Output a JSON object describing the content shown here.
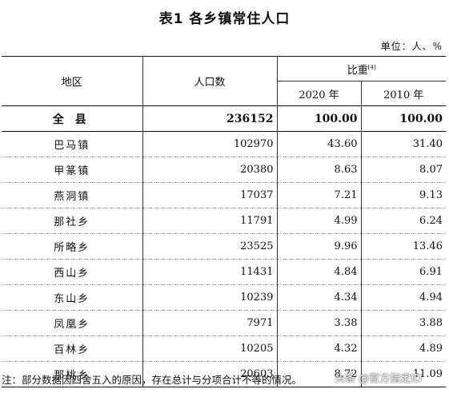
{
  "title": "表1  各乡镇常住人口",
  "unit": "单位：人、%",
  "table": {
    "headers": {
      "region": "地区",
      "population": "人口数",
      "ratio": "比重",
      "ratio_note": "[4]",
      "year_2020": "2020 年",
      "year_2010": "2010 年"
    },
    "total": {
      "name": "全县",
      "population": "236152",
      "ratio_2020": "100.00",
      "ratio_2010": "100.00"
    },
    "rows": [
      {
        "name": "巴马镇",
        "population": "102970",
        "ratio_2020": "43.60",
        "ratio_2010": "31.40"
      },
      {
        "name": "甲篆镇",
        "population": "20380",
        "ratio_2020": "8.63",
        "ratio_2010": "8.07"
      },
      {
        "name": "燕洞镇",
        "population": "17037",
        "ratio_2020": "7.21",
        "ratio_2010": "9.13"
      },
      {
        "name": "那社乡",
        "population": "11791",
        "ratio_2020": "4.99",
        "ratio_2010": "6.24"
      },
      {
        "name": "所略乡",
        "population": "23525",
        "ratio_2020": "9.96",
        "ratio_2010": "13.46"
      },
      {
        "name": "西山乡",
        "population": "11431",
        "ratio_2020": "4.84",
        "ratio_2010": "6.91"
      },
      {
        "name": "东山乡",
        "population": "10239",
        "ratio_2020": "4.34",
        "ratio_2010": "4.94"
      },
      {
        "name": "凤凰乡",
        "population": "7971",
        "ratio_2020": "3.38",
        "ratio_2010": "3.88"
      },
      {
        "name": "百林乡",
        "population": "10205",
        "ratio_2020": "4.32",
        "ratio_2010": "4.89"
      },
      {
        "name": "那桃乡",
        "population": "20603",
        "ratio_2020": "8.72",
        "ratio_2010": "11.09"
      }
    ]
  },
  "note": "注：部分数据因四舍五入的原因，存在总计与分项合计不等的情况。",
  "watermark": "头条 @官方指定ID"
}
